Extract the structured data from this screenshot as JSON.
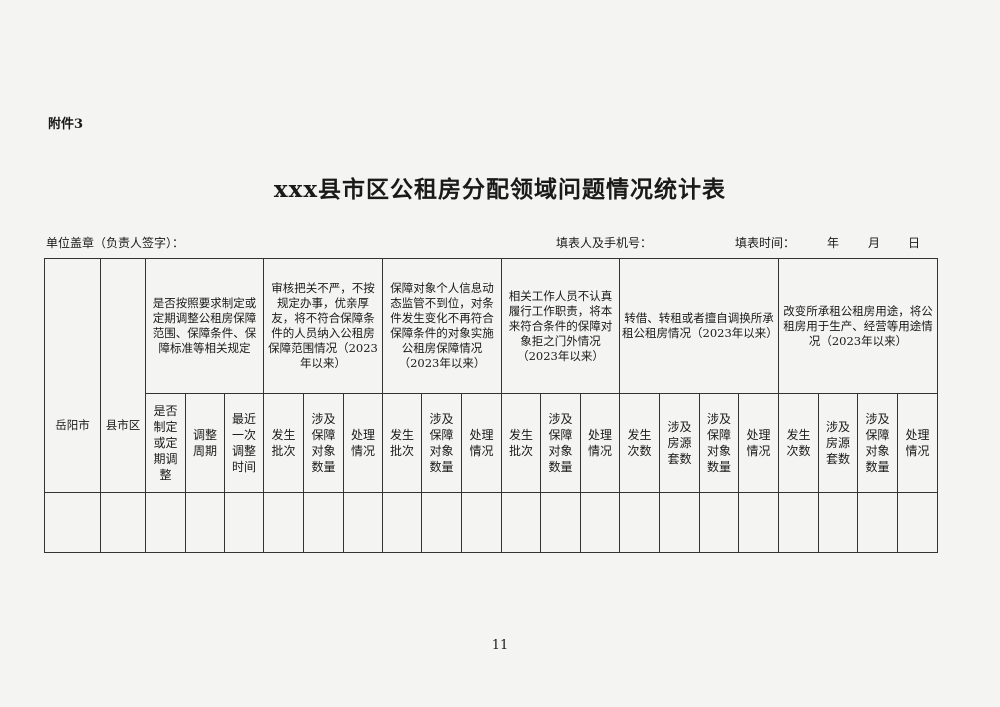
{
  "attachment_label": "附件3",
  "title": "xxx县市区公租房分配领域问题情况统计表",
  "meta": {
    "unit": "单位盖章（负责人签字）：",
    "filler": "填表人及手机号：",
    "date_label": "填表时间：",
    "year": "年",
    "month": "月",
    "day": "日"
  },
  "table": {
    "col_city": "岳阳市",
    "col_county": "县市区",
    "groups": [
      {
        "header": "是否按照要求制定或定期调整公租房保障范围、保障条件、保障标准等相关规定",
        "subs": [
          "是否制定或定期调整",
          "调整周期",
          "最近一次调整时间"
        ]
      },
      {
        "header": "审核把关不严，不按规定办事，优亲厚友，将不符合保障条件的人员纳入公租房保障范围情况（2023年以来）",
        "subs": [
          "发生批次",
          "涉及保障对象数量",
          "处理情况"
        ]
      },
      {
        "header": "保障对象个人信息动态监管不到位，对条件发生变化不再符合保障条件的对象实施公租房保障情况（2023年以来）",
        "subs": [
          "发生批次",
          "涉及保障对象数量",
          "处理情况"
        ]
      },
      {
        "header": "相关工作人员不认真履行工作职责，将本来符合条件的保障对象拒之门外情况（2023年以来）",
        "subs": [
          "发生批次",
          "涉及保障对象数量",
          "处理情况"
        ]
      },
      {
        "header": "转借、转租或者擅自调换所承租公租房情况（2023年以来）",
        "subs": [
          "发生次数",
          "涉及房源套数",
          "涉及保障对象数量",
          "处理情况"
        ]
      },
      {
        "header": "改变所承租公租房用途，将公租房用于生产、经营等用途情况（2023年以来）",
        "subs": [
          "发生次数",
          "涉及房源套数",
          "涉及保障对象数量",
          "处理情况"
        ]
      }
    ]
  },
  "page_number": "11"
}
